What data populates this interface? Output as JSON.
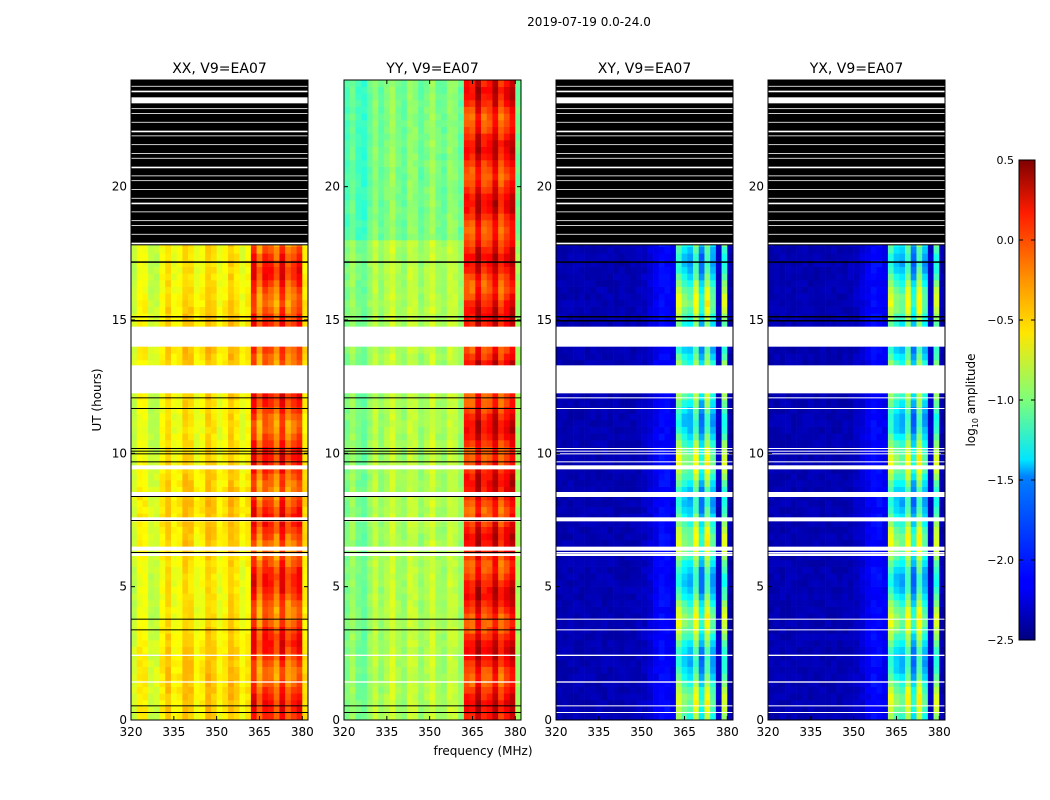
{
  "chart_data": {
    "type": "heatmap",
    "suptitle": "2019-07-19 0.0-24.0",
    "xlabel": "frequency (MHz)",
    "ylabel": "UT (hours)",
    "xlim": [
      320,
      382
    ],
    "ylim": [
      0,
      24
    ],
    "xticks": [
      320,
      335,
      350,
      365,
      380
    ],
    "yticks": [
      0,
      5,
      10,
      15,
      20
    ],
    "panels": [
      {
        "title": "XX, V9=EA07",
        "kind": "parallel",
        "flag_color": "#000000",
        "flagged_above_hour": 17.8
      },
      {
        "title": "YY, V9=EA07",
        "kind": "parallel_yy",
        "flag_color": "#000000",
        "flagged_above_hour": null
      },
      {
        "title": "XY, V9=EA07",
        "kind": "cross",
        "flag_color": "#000000",
        "flagged_above_hour": 17.8
      },
      {
        "title": "YX, V9=EA07",
        "kind": "cross",
        "flag_color": "#000000",
        "flagged_above_hour": 17.8
      }
    ],
    "white_gaps_hours": [
      [
        13.0,
        14.0
      ],
      [
        14.5,
        15.0
      ],
      [
        12.2,
        13.0
      ]
    ],
    "hot_band_mhz": [
      363,
      381
    ],
    "colorbar": {
      "label": "log10 amplitude",
      "label_main": "log",
      "label_sub": "10",
      "label_tail": " amplitude",
      "cmap": "jet",
      "min": -2.5,
      "max": 0.5,
      "ticks": [
        0.5,
        0.0,
        -0.5,
        -1.0,
        -1.5,
        -2.0,
        -2.5
      ],
      "tick_labels": [
        "0.5",
        "0.0",
        "−0.5",
        "−1.0",
        "−1.5",
        "−2.0",
        "−2.5"
      ]
    }
  }
}
